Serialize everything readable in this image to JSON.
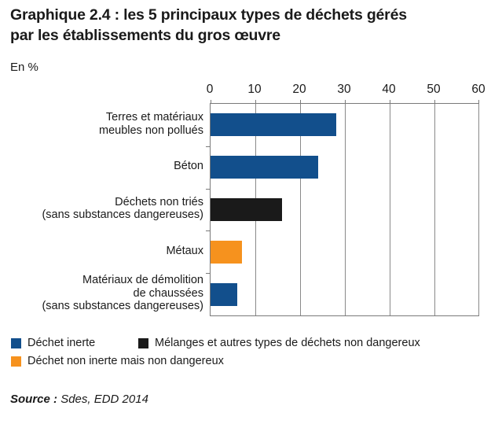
{
  "header": {
    "title": "Graphique 2.4 : les 5 principaux types de déchets gérés\npar les établissements du gros œuvre",
    "unit_label": "En %"
  },
  "legend": {
    "items": [
      {
        "label": "Déchet inerte",
        "color": "#124f8c"
      },
      {
        "label": "Mélanges et autres types de déchets non dangereux",
        "color": "#1a1a1a"
      },
      {
        "label": "Déchet non inerte mais non dangereux",
        "color": "#f6921e"
      }
    ]
  },
  "source": {
    "prefix": "Source : ",
    "text": "Sdes, EDD 2014"
  },
  "chart_data": {
    "type": "bar",
    "orientation": "horizontal",
    "title": "Graphique 2.4 : les 5 principaux types de déchets gérés par les établissements du gros œuvre",
    "unit": "En %",
    "categories": [
      "Terres et matériaux meubles non pollués",
      "Béton",
      "Déchets non triés (sans substances dangereuses)",
      "Métaux",
      "Matériaux de démolition de chaussées (sans substances dangereuses)"
    ],
    "category_lines": [
      [
        "Terres et matériaux",
        "meubles non pollués"
      ],
      [
        "Béton"
      ],
      [
        "Déchets non triés",
        "(sans substances dangereuses)"
      ],
      [
        "Métaux"
      ],
      [
        "Matériaux de démolition",
        "de chaussées",
        "(sans substances dangereuses)"
      ]
    ],
    "values": [
      28,
      24,
      16,
      7,
      6
    ],
    "bar_colors": [
      "#124f8c",
      "#124f8c",
      "#1a1a1a",
      "#f6921e",
      "#124f8c"
    ],
    "bar_legend_keys": [
      "Déchet inerte",
      "Déchet inerte",
      "Mélanges et autres types de déchets non dangereux",
      "Déchet non inerte mais non dangereux",
      "Déchet inerte"
    ],
    "xlim": [
      0,
      60
    ],
    "xticks": [
      0,
      10,
      20,
      30,
      40,
      50,
      60
    ],
    "grid": true,
    "axis_position": "top",
    "legend_position": "bottom"
  }
}
